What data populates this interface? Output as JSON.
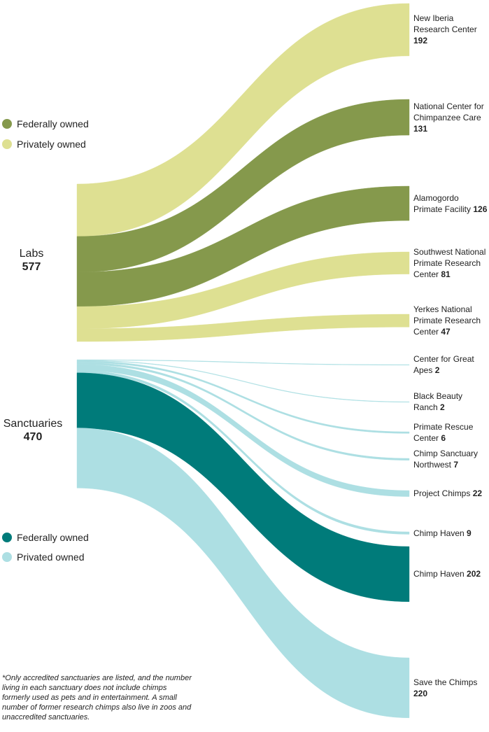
{
  "chart_data": {
    "type": "sankey",
    "sources": [
      {
        "name": "Labs",
        "value": 577,
        "legend": [
          {
            "name": "Federally owned",
            "color": "#85994c"
          },
          {
            "name": "Privately owned",
            "color": "#dee092"
          }
        ],
        "flows": [
          {
            "target": "New Iberia Research Center",
            "value": 192,
            "color": "#dee092"
          },
          {
            "target": "National Center for Chimpanzee Care",
            "value": 131,
            "color": "#85994c"
          },
          {
            "target": "Alamogordo Primate Facility",
            "value": 126,
            "color": "#85994c"
          },
          {
            "target": "Southwest National Primate Research Center",
            "value": 81,
            "color": "#dee092"
          },
          {
            "target": "Yerkes National Primate Research Center",
            "value": 47,
            "color": "#dee092"
          }
        ]
      },
      {
        "name": "Sanctuaries",
        "value": 470,
        "legend": [
          {
            "name": "Federally owned",
            "color": "#007b7a"
          },
          {
            "name": "Privated owned",
            "color": "#addfe3"
          }
        ],
        "flows": [
          {
            "target": "Center for Great Apes",
            "value": 2,
            "color": "#addfe3"
          },
          {
            "target": "Black Beauty Ranch",
            "value": 2,
            "color": "#addfe3"
          },
          {
            "target": "Primate Rescue Center",
            "value": 6,
            "color": "#addfe3"
          },
          {
            "target": "Chimp Sanctuary Northwest",
            "value": 7,
            "color": "#addfe3"
          },
          {
            "target": "Project Chimps",
            "value": 22,
            "color": "#addfe3"
          },
          {
            "target": "Chimp Haven",
            "value": 9,
            "color": "#addfe3"
          },
          {
            "target": "Chimp Haven",
            "value": 202,
            "color": "#007b7a"
          },
          {
            "target": "Save the Chimps",
            "value": 220,
            "color": "#addfe3"
          }
        ]
      }
    ],
    "note": "*Only accredited sanctuaries are listed, and the number living in each sanctuary does not include chimps formerly used as pets and in entertainment. A small number of former research chimps also live in zoos and unaccredited sanctuaries."
  }
}
